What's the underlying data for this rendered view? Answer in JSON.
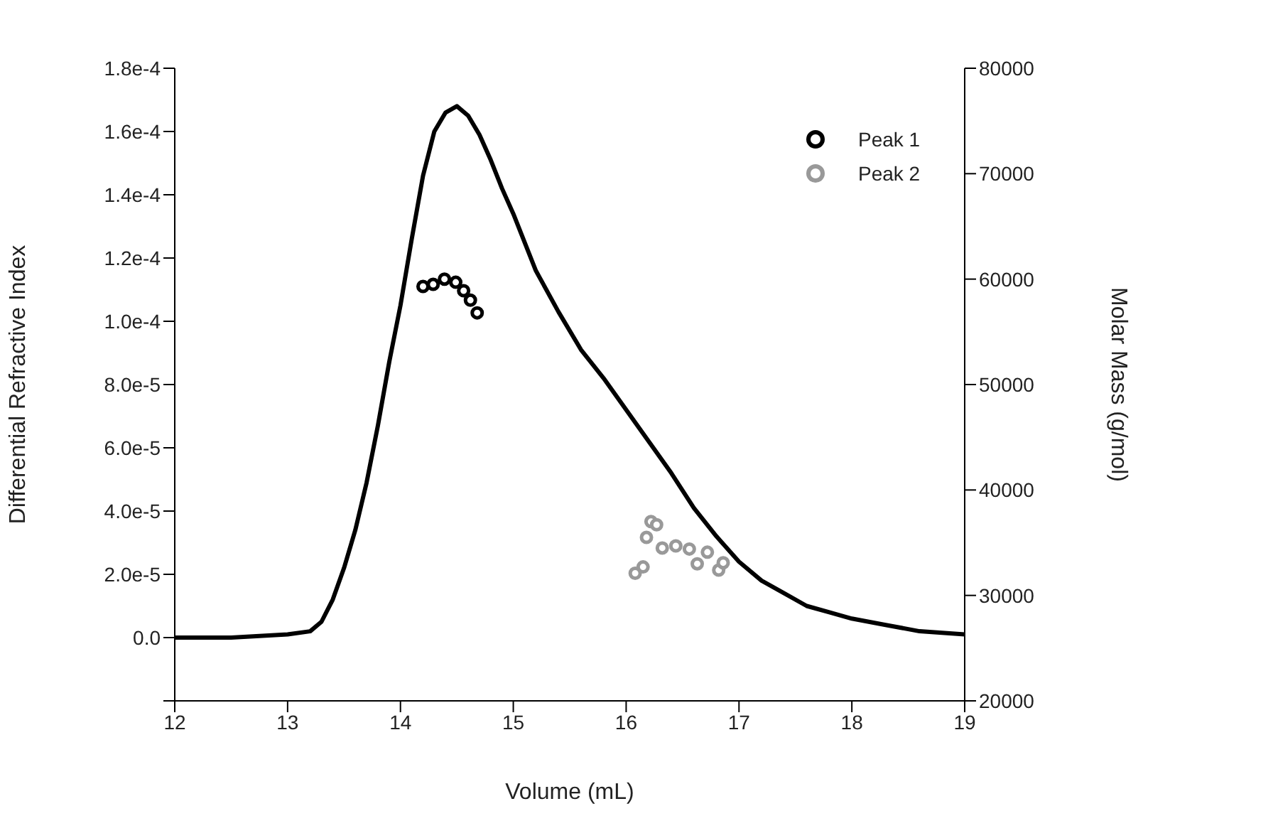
{
  "chart_data": {
    "type": "line",
    "xlabel": "Volume (mL)",
    "ylabel": "Differential Refractive Index",
    "y2label": "Molar Mass  (g/mol)",
    "xlim": [
      12,
      19
    ],
    "xticks": [
      12,
      13,
      14,
      15,
      16,
      17,
      18,
      19
    ],
    "ylim": [
      -2e-05,
      0.00018
    ],
    "yticks": [
      {
        "value": -2e-05,
        "label": null
      },
      {
        "value": 0,
        "label": "0.0"
      },
      {
        "value": 2e-05,
        "label": "2.0e-5"
      },
      {
        "value": 4e-05,
        "label": "4.0e-5"
      },
      {
        "value": 6e-05,
        "label": "6.0e-5"
      },
      {
        "value": 8e-05,
        "label": "8.0e-5"
      },
      {
        "value": 0.0001,
        "label": "1.0e-4"
      },
      {
        "value": 0.00012,
        "label": "1.2e-4"
      },
      {
        "value": 0.00014,
        "label": "1.4e-4"
      },
      {
        "value": 0.00016,
        "label": "1.6e-4"
      },
      {
        "value": 0.00018,
        "label": "1.8e-4"
      }
    ],
    "y2lim": [
      20000,
      80000
    ],
    "y2ticks": [
      20000,
      30000,
      40000,
      50000,
      60000,
      70000,
      80000
    ],
    "grid": false,
    "legend": "top right",
    "marker": "circle",
    "series": [
      {
        "color": "#000000",
        "marker": "none",
        "x": [
          12,
          12.5,
          13,
          13.2,
          13.3,
          13.4,
          13.5,
          13.6,
          13.7,
          13.8,
          13.9,
          14,
          14.1,
          14.2,
          14.3,
          14.4,
          14.5,
          14.6,
          14.7,
          14.8,
          14.9,
          15,
          15.2,
          15.4,
          15.6,
          15.8,
          16,
          16.2,
          16.4,
          16.6,
          16.8,
          17,
          17.2,
          17.4,
          17.6,
          17.8,
          18,
          18.3,
          18.6,
          19
        ],
        "values": [
          0,
          0,
          1e-06,
          2e-06,
          5e-06,
          1.2e-05,
          2.2e-05,
          3.4e-05,
          4.9e-05,
          6.7e-05,
          8.7e-05,
          0.000105,
          0.000126,
          0.000146,
          0.00016,
          0.000166,
          0.000168,
          0.000165,
          0.000159,
          0.000151,
          0.000142,
          0.000134,
          0.000116,
          0.000103,
          9.1e-05,
          8.2e-05,
          7.2e-05,
          6.2e-05,
          5.2e-05,
          4.1e-05,
          3.2e-05,
          2.4e-05,
          1.8e-05,
          1.4e-05,
          1e-05,
          8e-06,
          6e-06,
          4e-06,
          2e-06,
          1e-06
        ]
      },
      {
        "type": "scatter",
        "name": "Peak 1",
        "color": "#000000",
        "axis": "y2",
        "x": [
          14.2,
          14.29,
          14.39,
          14.49,
          14.56,
          14.62,
          14.68
        ],
        "values": [
          59300,
          59500,
          60000,
          59700,
          58900,
          58000,
          56800
        ]
      },
      {
        "type": "scatter",
        "name": "Peak 2",
        "color": "#999999",
        "axis": "y2",
        "x": [
          16.08,
          16.15,
          16.18,
          16.22,
          16.27,
          16.32,
          16.44,
          16.56,
          16.63,
          16.72,
          16.82,
          16.86
        ],
        "values": [
          32100,
          32700,
          35500,
          37000,
          36700,
          34500,
          34700,
          34400,
          33000,
          34100,
          32400,
          33100
        ]
      }
    ]
  }
}
